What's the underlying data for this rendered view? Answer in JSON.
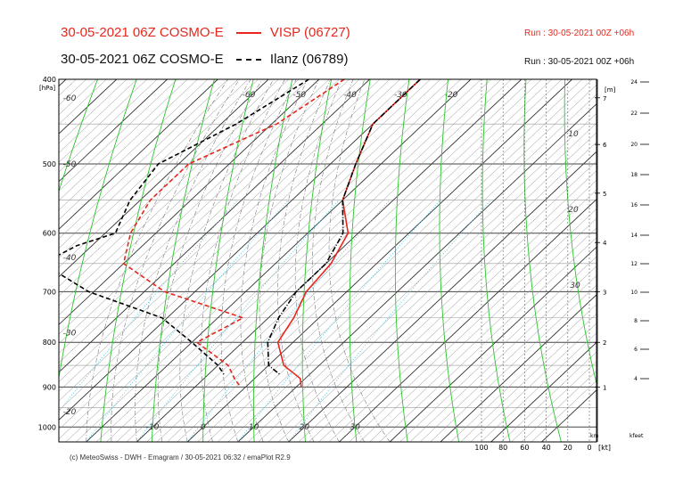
{
  "header": {
    "line1_title": "30-05-2021 06Z COSMO-E",
    "line1_station": "VISP (06727)",
    "line1_run": "Run : 30-05-2021 00Z +06h",
    "line2_title": "30-05-2021 06Z COSMO-E",
    "line2_station": "Ilanz (06789)",
    "line2_run": "Run : 30-05-2021 00Z +06h"
  },
  "footer": {
    "credit": "(c) MeteoSwiss - DWH - Emagram / 30-05-2021  06:32 / emaPlot R2.9"
  },
  "colors": {
    "visp": "#e8261c",
    "ilanz": "#000000",
    "isotherm": "#555555",
    "dry_adiabat": "#2ec42e",
    "mixing_ratio": "#49c6e6",
    "moist_adiabat": "#7a7a7a"
  },
  "chart_data": {
    "type": "line",
    "chart_kind": "emagram",
    "y_scale": "log",
    "pressure_unit_label": "[hPa]",
    "pressure_ticks": [
      "400",
      "500",
      "600",
      "700",
      "800",
      "900",
      "1000"
    ],
    "pressure_range_hpa": [
      400,
      1040
    ],
    "temperature_bottom_ticks": [
      "-10",
      "0",
      "10",
      "20",
      "30"
    ],
    "temperature_top_ticks": [
      "-60",
      "-50",
      "-40",
      "-30",
      "-20"
    ],
    "temperature_left_ticks": [
      "-60",
      "-50",
      "-40",
      "-30",
      "-20"
    ],
    "temperature_range_c_at_1000": [
      -25,
      60
    ],
    "mixing_ratio_labels": [
      "10",
      "20",
      "30"
    ],
    "height_m_label": "[m]",
    "height_km_ticks": [
      "1",
      "2",
      "3",
      "4",
      "5",
      "6",
      "7"
    ],
    "height_km_label": "km",
    "height_kfeet_ticks": [
      "4",
      "6",
      "8",
      "10",
      "12",
      "14",
      "16",
      "18",
      "20",
      "22",
      "24"
    ],
    "height_kfeet_label": "kfeet",
    "wind_ticks": [
      "100",
      "80",
      "60",
      "40",
      "20",
      "0"
    ],
    "wind_unit_label": "[kt]",
    "series": [
      {
        "name": "VISP (06727)",
        "kind": "temperature",
        "points": [
          [
            400,
            -30
          ],
          [
            450,
            -30
          ],
          [
            500,
            -25
          ],
          [
            550,
            -20
          ],
          [
            600,
            -12
          ],
          [
            650,
            -9
          ],
          [
            700,
            -8
          ],
          [
            750,
            -5
          ],
          [
            800,
            -3
          ],
          [
            850,
            3
          ],
          [
            880,
            9
          ],
          [
            900,
            11
          ]
        ]
      },
      {
        "name": "VISP (06727)",
        "kind": "dewpoint",
        "points": [
          [
            400,
            -45
          ],
          [
            450,
            -49
          ],
          [
            500,
            -58
          ],
          [
            550,
            -58
          ],
          [
            600,
            -55
          ],
          [
            650,
            -50
          ],
          [
            700,
            -36
          ],
          [
            750,
            -15
          ],
          [
            800,
            -19
          ],
          [
            850,
            -8
          ],
          [
            880,
            -4
          ],
          [
            900,
            -1
          ]
        ]
      },
      {
        "name": "Ilanz (06789)",
        "kind": "temperature",
        "points": [
          [
            400,
            -30
          ],
          [
            450,
            -30
          ],
          [
            500,
            -25
          ],
          [
            550,
            -20
          ],
          [
            600,
            -13
          ],
          [
            650,
            -10
          ],
          [
            700,
            -10
          ],
          [
            750,
            -8
          ],
          [
            800,
            -5
          ],
          [
            850,
            0
          ],
          [
            870,
            4
          ]
        ]
      },
      {
        "name": "Ilanz (06789)",
        "kind": "dewpoint",
        "points": [
          [
            400,
            -52
          ],
          [
            450,
            -57
          ],
          [
            500,
            -64
          ],
          [
            550,
            -62
          ],
          [
            600,
            -58
          ],
          [
            620,
            -63
          ],
          [
            650,
            -66
          ],
          [
            700,
            -51
          ],
          [
            750,
            -31
          ],
          [
            800,
            -20
          ],
          [
            850,
            -10
          ],
          [
            870,
            -7
          ]
        ]
      }
    ]
  }
}
